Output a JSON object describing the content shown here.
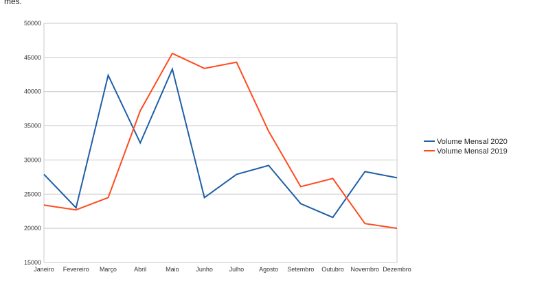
{
  "top_text": "mes.",
  "chart_data": {
    "type": "line",
    "categories": [
      "Janeiro",
      "Fevereiro",
      "Março",
      "Abril",
      "Maio",
      "Junho",
      "Julho",
      "Agosto",
      "Setembro",
      "Outubro",
      "Novembro",
      "Dezembro"
    ],
    "series": [
      {
        "name": "Volume Mensal 2020",
        "color": "#1f5fa6",
        "values": [
          27900,
          23000,
          42400,
          32500,
          43300,
          24500,
          27900,
          29200,
          23600,
          21600,
          28300,
          27400
        ]
      },
      {
        "name": "Volume Mensal 2019",
        "color": "#ff4b1f",
        "values": [
          23400,
          22700,
          24500,
          37200,
          45600,
          43400,
          44300,
          34200,
          26100,
          27300,
          20700,
          20000
        ]
      }
    ],
    "ylim": [
      15000,
      50000
    ],
    "yticks": [
      15000,
      20000,
      25000,
      30000,
      35000,
      40000,
      45000,
      50000
    ],
    "grid": true,
    "legend_position": "right",
    "title": "",
    "xlabel": "",
    "ylabel": ""
  }
}
